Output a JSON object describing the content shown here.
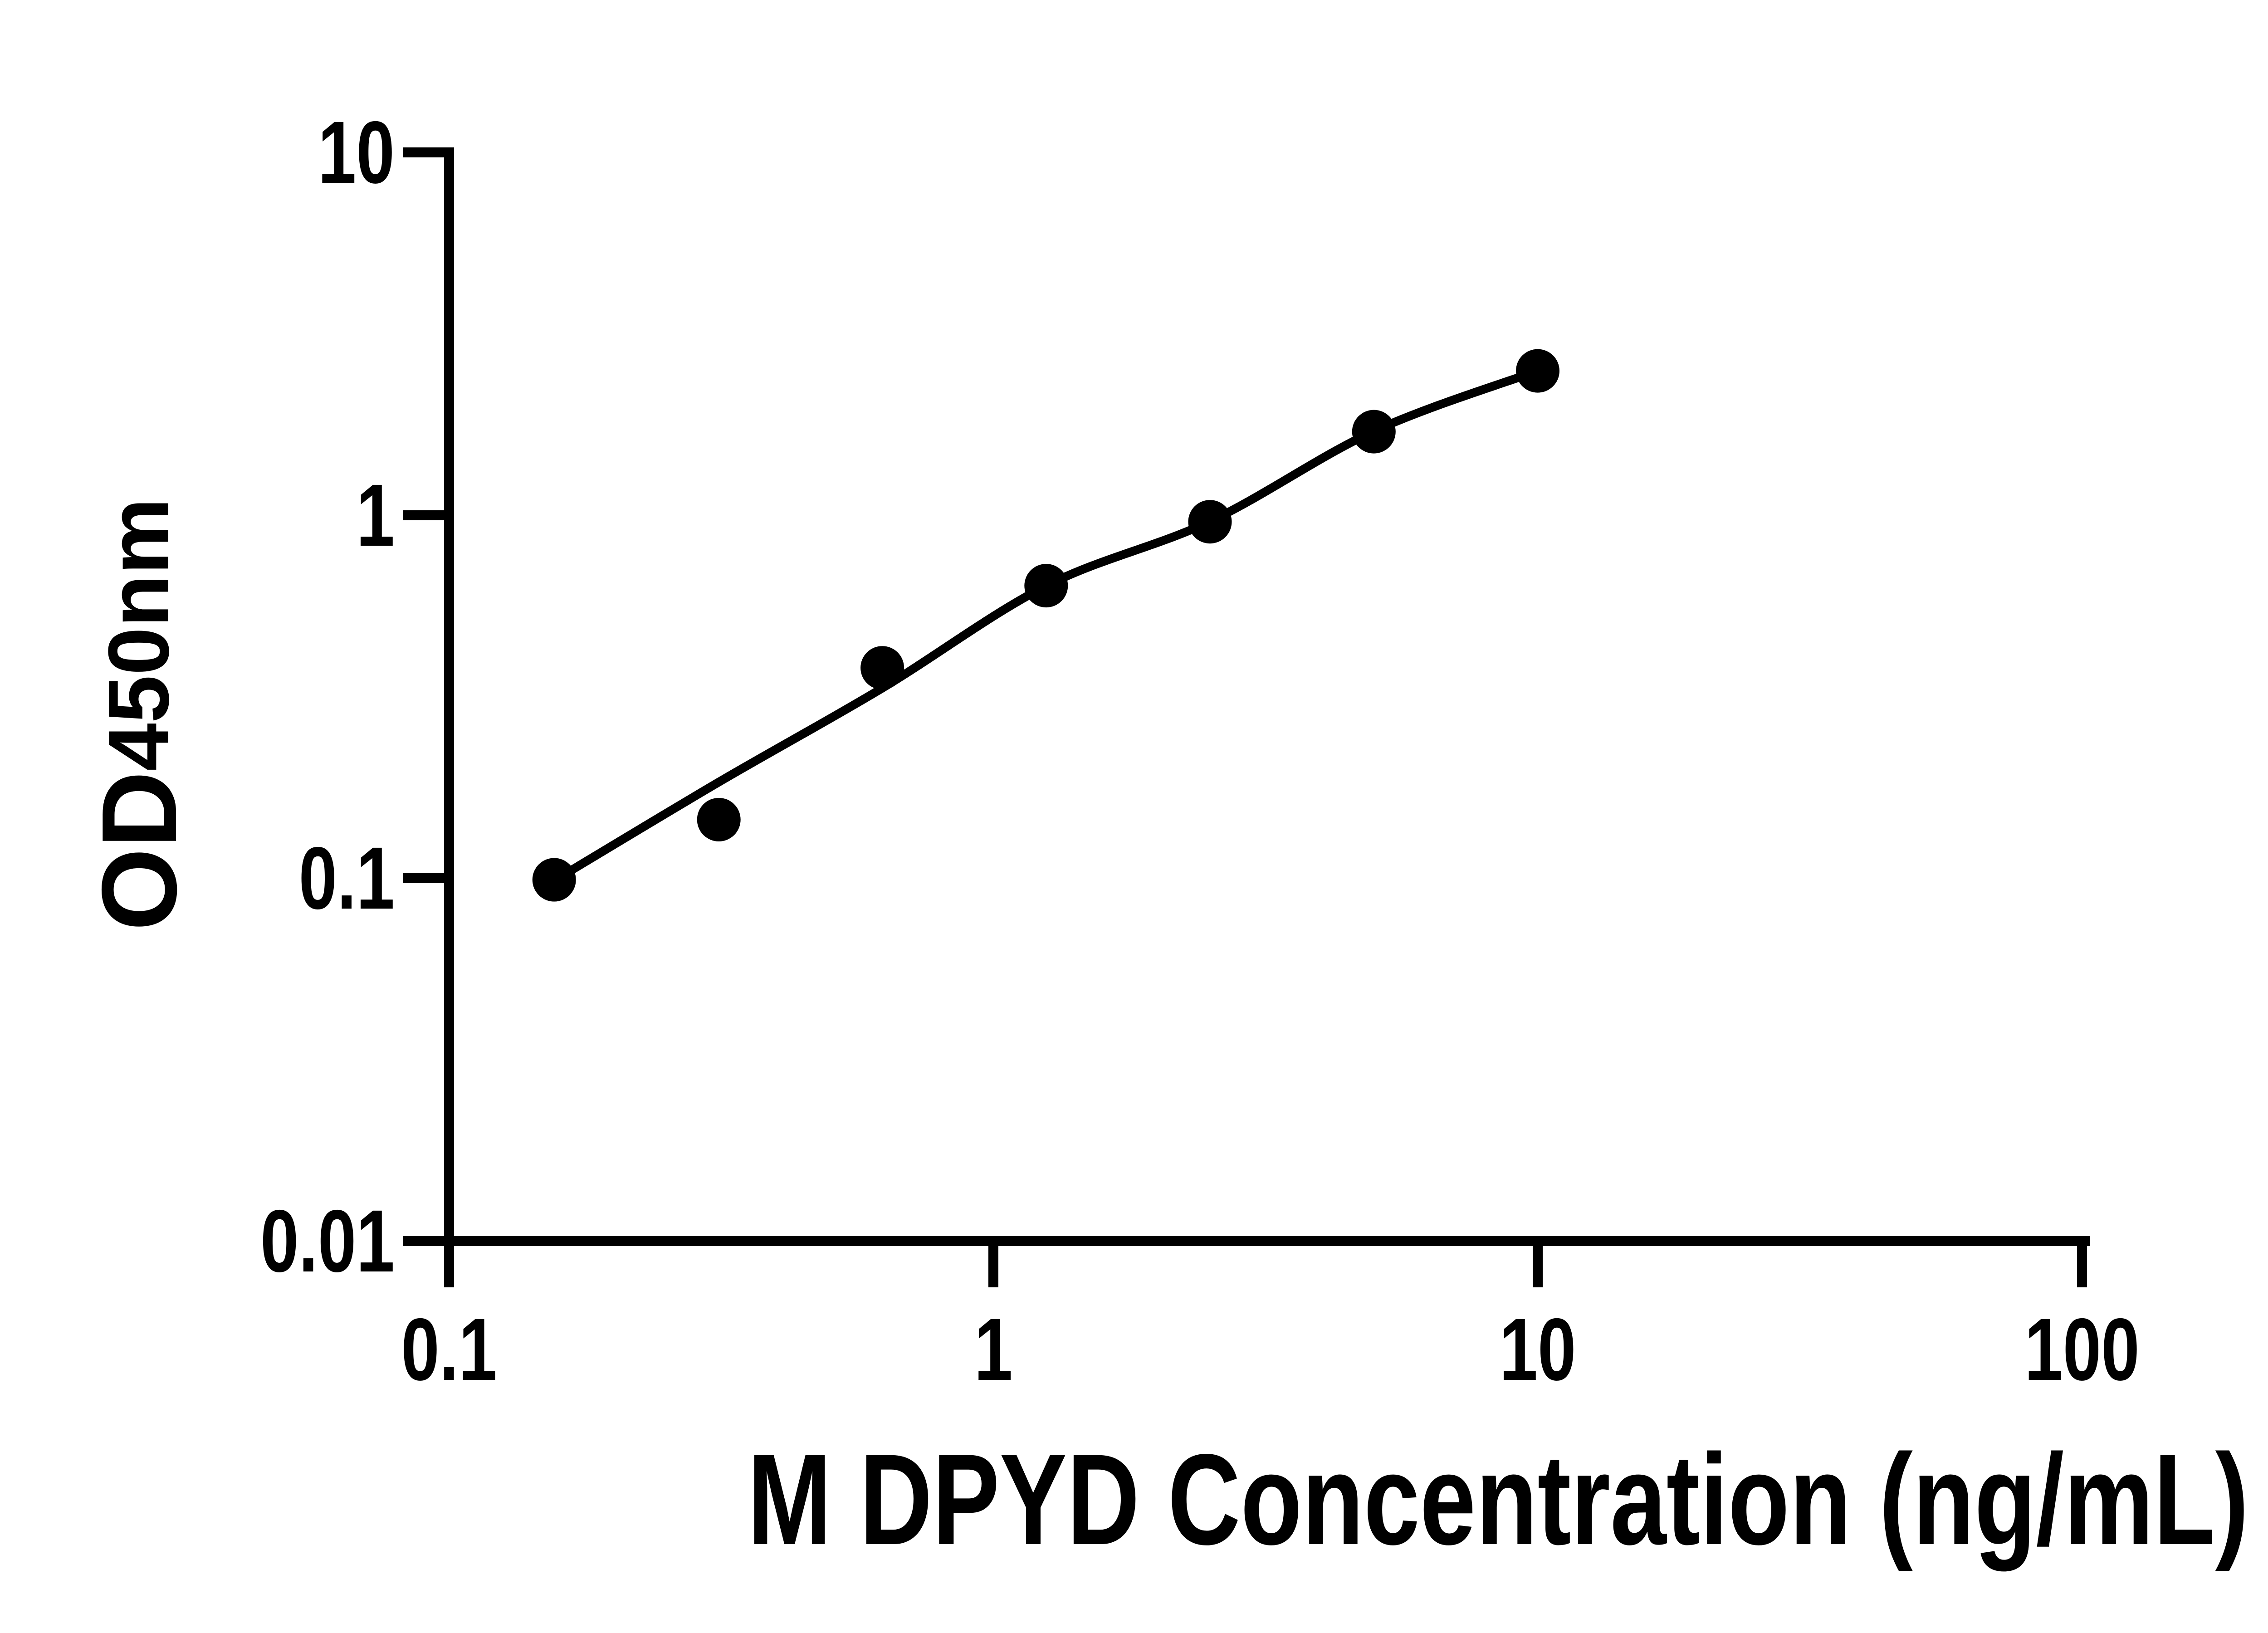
{
  "figure": {
    "background": "#ffffff",
    "ink_color": "#000000"
  },
  "y_axis_title": {
    "main": "OD",
    "subscript": "450nm"
  },
  "x_axis_title": "M DPYD Concentration (ng/mL)",
  "chart_data": {
    "type": "scatter",
    "title": "",
    "xlabel": "M DPYD Concentration (ng/mL)",
    "ylabel": "OD450nm",
    "x_scale": "log",
    "y_scale": "log",
    "xlim": [
      0.1,
      100
    ],
    "ylim": [
      0.01,
      10
    ],
    "grid": false,
    "legend": false,
    "x_ticks": {
      "values": [
        0.1,
        1,
        10,
        100
      ],
      "labels": [
        "0.1",
        "1",
        "10",
        "100"
      ]
    },
    "y_ticks": {
      "values": [
        10,
        1,
        0.1,
        0.01
      ],
      "labels": [
        "10",
        "1",
        "0.1",
        "0.01"
      ]
    },
    "series": [
      {
        "name": "standard-points",
        "render": "markers",
        "marker": "filled-circle",
        "color": "#000000",
        "points": [
          [
            0.156,
            0.099
          ],
          [
            0.313,
            0.145
          ],
          [
            0.625,
            0.38
          ],
          [
            1.25,
            0.64
          ],
          [
            2.5,
            0.96
          ],
          [
            5,
            1.7
          ],
          [
            10,
            2.5
          ]
        ]
      },
      {
        "name": "fit-curve",
        "render": "line",
        "color": "#000000",
        "points": [
          [
            0.156,
            0.0985
          ],
          [
            0.313,
            0.184
          ],
          [
            0.625,
            0.334
          ],
          [
            1.25,
            0.639
          ],
          [
            2.5,
            0.962
          ],
          [
            5,
            1.705
          ],
          [
            10,
            2.5
          ]
        ]
      }
    ]
  }
}
